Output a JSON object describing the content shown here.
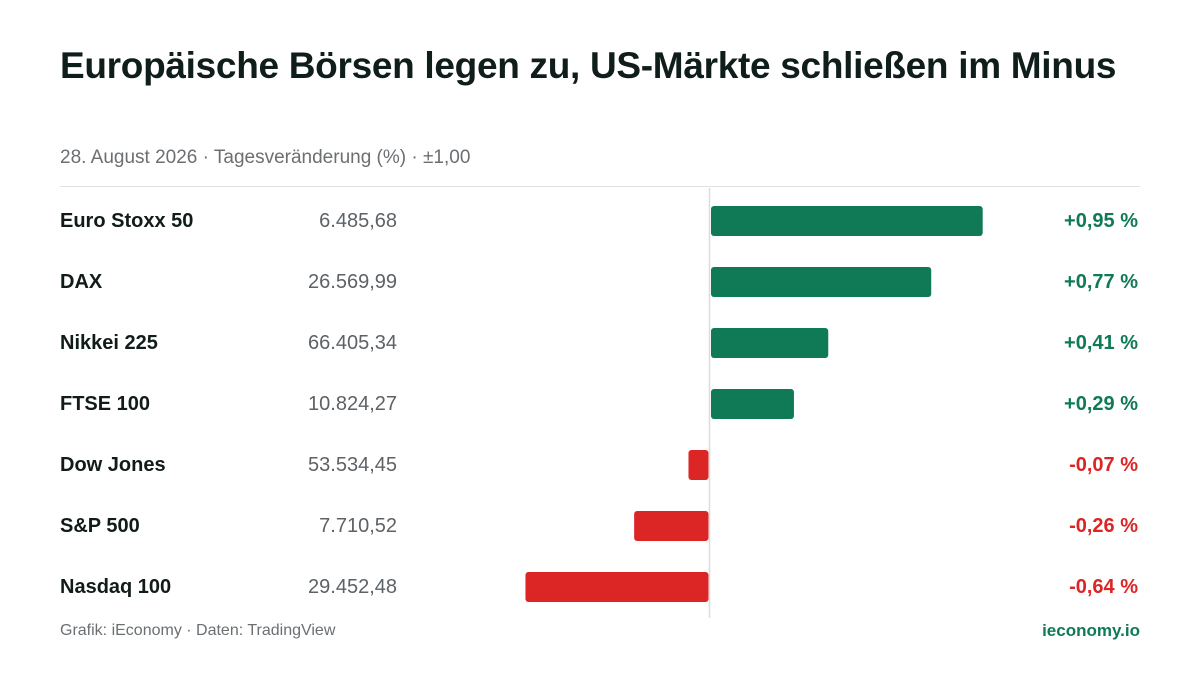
{
  "header": {
    "title": "Europäische Börsen legen zu, US-Märkte schließen im Minus",
    "subtitle": "28. August 2026 · Tagesveränderung (%) · ±1,00"
  },
  "footer": {
    "source": "Grafik: iEconomy · Daten: TradingView",
    "brand": "ieconomy.io"
  },
  "colors": {
    "positive": "#0f7a55",
    "negative": "#dc2626",
    "axis": "#d9dde0"
  },
  "chart_data": {
    "type": "bar",
    "orientation": "horizontal",
    "title": "Europäische Börsen legen zu, US-Märkte schließen im Minus",
    "subtitle": "28. August 2026 · Tagesveränderung (%) · ±1,00",
    "xlim": [
      -1.0,
      1.0
    ],
    "grid": false,
    "categories": [
      "Euro Stoxx 50",
      "DAX",
      "Nikkei 225",
      "FTSE 100",
      "Dow Jones",
      "S&P 500",
      "Nasdaq 100"
    ],
    "prices": [
      "6.485,68",
      "26.569,99",
      "66.405,34",
      "10.824,27",
      "53.534,45",
      "7.710,52",
      "29.452,48"
    ],
    "values": [
      0.95,
      0.77,
      0.41,
      0.29,
      -0.07,
      -0.26,
      -0.64
    ],
    "labels": [
      "+0,95 %",
      "+0,77 %",
      "+0,41 %",
      "+0,29 %",
      "-0,07 %",
      "-0,26 %",
      "-0,64 %"
    ]
  }
}
